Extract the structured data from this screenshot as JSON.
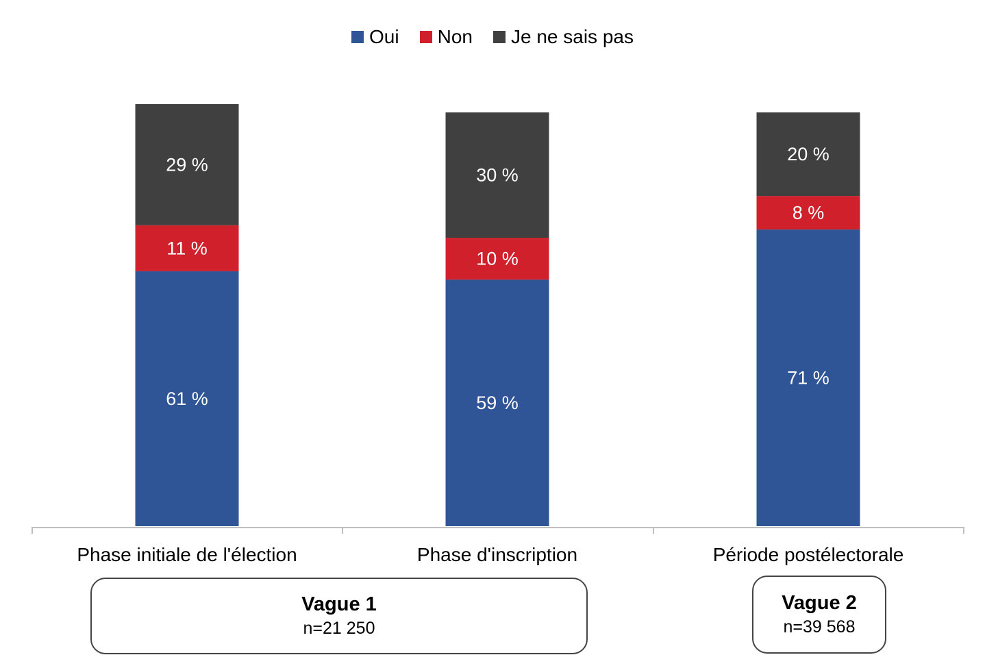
{
  "chart_data": {
    "type": "bar",
    "stacked": true,
    "categories": [
      "Phase initiale de l'élection",
      "Phase d'inscription",
      "Période postélectorale"
    ],
    "series": [
      {
        "name": "Oui",
        "color": "#2f5597",
        "values": [
          61,
          59,
          71
        ],
        "labels": [
          "61 %",
          "59 %",
          "71 %"
        ]
      },
      {
        "name": "Non",
        "color": "#d0202c",
        "values": [
          11,
          10,
          8
        ],
        "labels": [
          "11 %",
          "10 %",
          "8 %"
        ]
      },
      {
        "name": "Je ne sais pas",
        "color": "#404040",
        "values": [
          29,
          30,
          20
        ],
        "labels": [
          "29 %",
          "30 %",
          "20 %"
        ]
      }
    ],
    "legend_position": "top",
    "grid": false
  },
  "waves": [
    {
      "title": "Vague 1",
      "n": "n=21 250"
    },
    {
      "title": "Vague 2",
      "n": "n=39 568"
    }
  ]
}
